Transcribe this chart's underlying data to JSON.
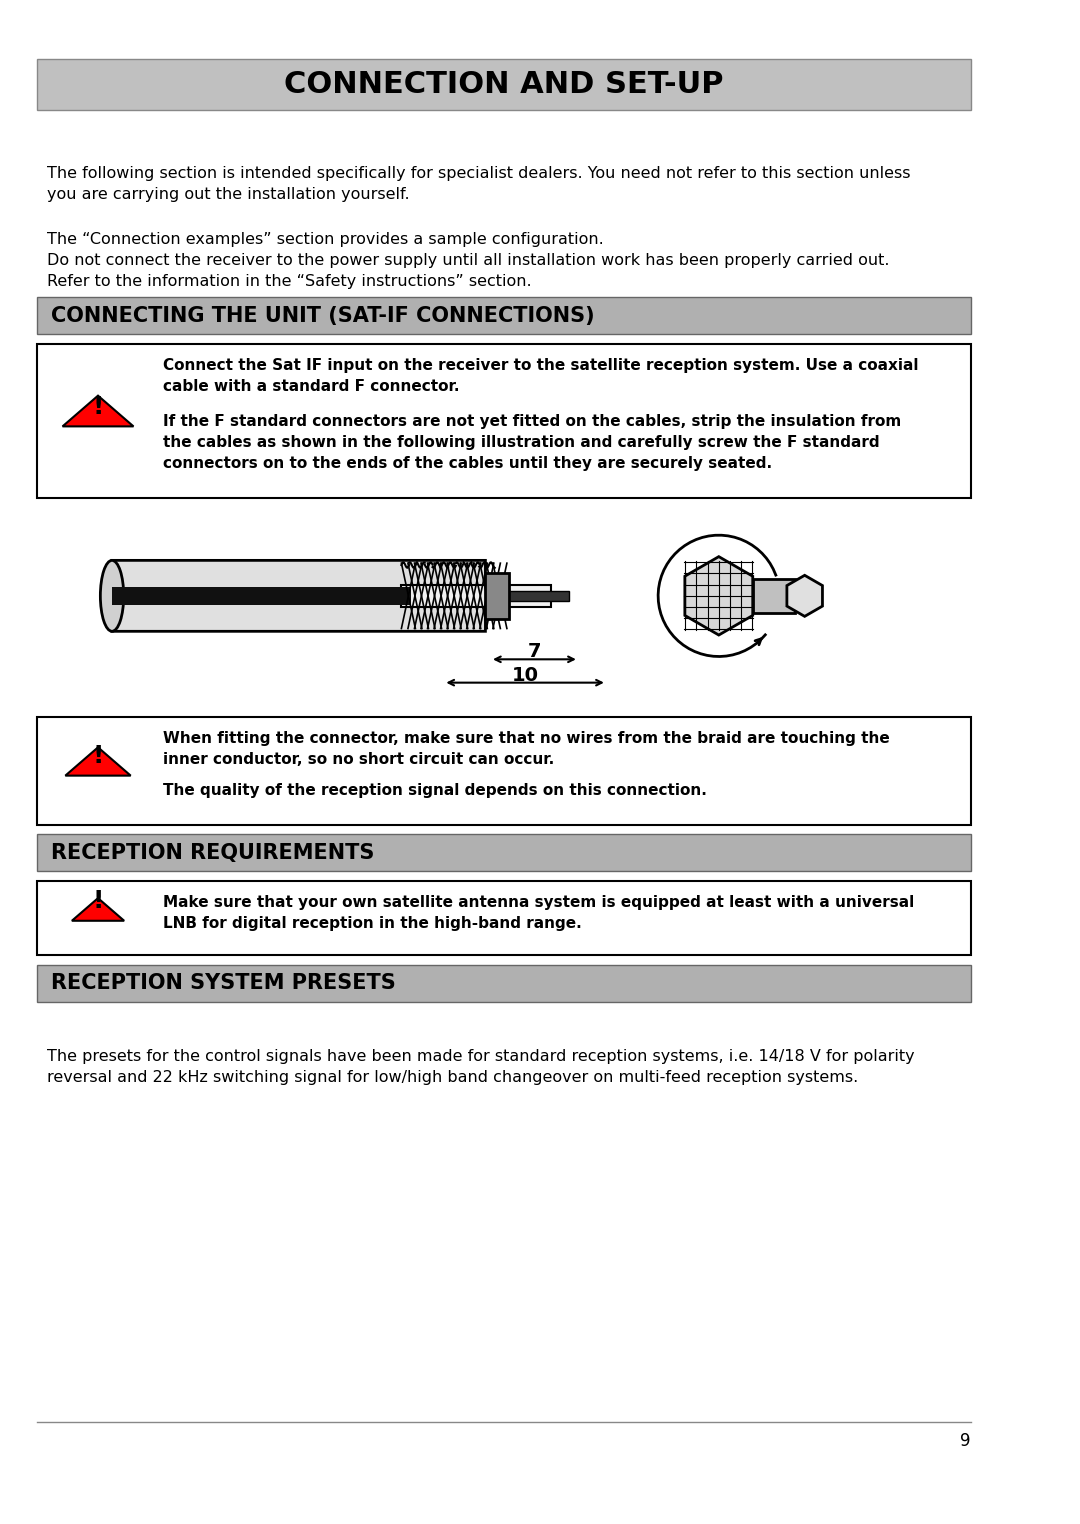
{
  "title": "CONNECTION AND SET-UP",
  "title_bg": "#c0c0c0",
  "title_fontsize": 22,
  "page_bg": "#ffffff",
  "body_text_1": "The following section is intended specifically for specialist dealers. You need not refer to this section unless\nyou are carrying out the installation yourself.",
  "body_text_2": "The “Connection examples” section provides a sample configuration.\nDo not connect the receiver to the power supply until all installation work has been properly carried out.\nRefer to the information in the “Safety instructions” section.",
  "section1_title": "CONNECTING THE UNIT (SAT-IF CONNECTIONS)",
  "section1_bg": "#b0b0b0",
  "warning1_line1": "Connect the Sat IF input on the receiver to the satellite reception system. Use a coaxial\ncable with a standard F connector.",
  "warning1_line2": "If the F standard connectors are not yet fitted on the cables, strip the insulation from\nthe cables as shown in the following illustration and carefully screw the F standard\nconnectors on to the ends of the cables until they are securely seated.",
  "warning2_line1": "When fitting the connector, make sure that no wires from the braid are touching the\ninner conductor, so no short circuit can occur.",
  "warning2_line2": "The quality of the reception signal depends on this connection.",
  "section2_title": "RECEPTION REQUIREMENTS",
  "section2_bg": "#b0b0b0",
  "warning3_line1": "Make sure that your own satellite antenna system is equipped at least with a universal\nLNB for digital reception in the high-band range.",
  "section3_title": "RECEPTION SYSTEM PRESETS",
  "section3_bg": "#b0b0b0",
  "body_text_3": "The presets for the control signals have been made for standard reception systems, i.e. 14/18 V for polarity\nreversal and 22 kHz switching signal for low/high band changeover on multi-feed reception systems.",
  "page_number": "9",
  "dim7": "7",
  "dim10": "10"
}
